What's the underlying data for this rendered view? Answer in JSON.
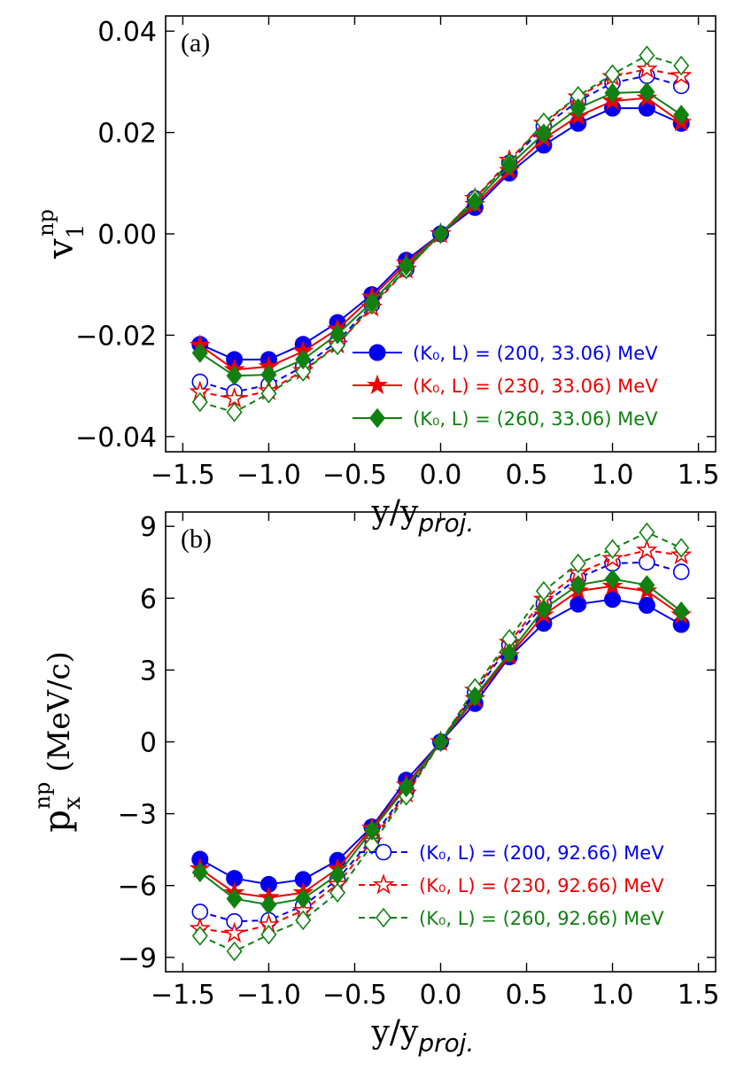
{
  "chart_data": [
    {
      "type": "line",
      "panel_label": "(a)",
      "ylabel_main": "v",
      "ylabel_sub": "1",
      "ylabel_sup": "np",
      "xlabel_main": "y/y",
      "xlabel_sub": "proj.",
      "xlim": [
        -1.6,
        1.6
      ],
      "ylim": [
        -0.043,
        0.043
      ],
      "xticks": [
        -1.5,
        -1.0,
        -0.5,
        0.0,
        0.5,
        1.0,
        1.5
      ],
      "xtick_labels": [
        "−1.5",
        "−1.0",
        "−0.5",
        "0.0",
        "0.5",
        "1.0",
        "1.5"
      ],
      "yticks": [
        -0.04,
        -0.02,
        0.0,
        0.02,
        0.04
      ],
      "ytick_labels": [
        "−0.04",
        "−0.02",
        "0.00",
        "0.02",
        "0.04"
      ],
      "x": [
        -1.4,
        -1.2,
        -1.0,
        -0.8,
        -0.6,
        -0.4,
        -0.2,
        0.0,
        0.2,
        0.4,
        0.6,
        0.8,
        1.0,
        1.2,
        1.4
      ],
      "legend_position": "lower-right",
      "series": [
        {
          "name": "(K₀, L) = (200, 33.06) MeV",
          "color": "#0000ee",
          "marker": "circle",
          "fill": "filled",
          "linestyle": "solid",
          "legend": true,
          "values": [
            -0.0218,
            -0.0248,
            -0.0248,
            -0.0218,
            -0.0175,
            -0.012,
            -0.0052,
            0.0,
            0.0052,
            0.012,
            0.0175,
            0.0218,
            0.0248,
            0.0248,
            0.0218
          ]
        },
        {
          "name": "(K₀, L) = (230, 33.06) MeV",
          "color": "#ee0000",
          "marker": "star",
          "fill": "filled",
          "linestyle": "solid",
          "legend": true,
          "values": [
            -0.022,
            -0.0268,
            -0.0262,
            -0.0232,
            -0.0188,
            -0.0125,
            -0.0058,
            0.0,
            0.0058,
            0.0125,
            0.0188,
            0.0232,
            0.0262,
            0.0268,
            0.022
          ]
        },
        {
          "name": "(K₀, L) = (260, 33.06) MeV",
          "color": "#108010",
          "marker": "diamond",
          "fill": "filled",
          "linestyle": "solid",
          "legend": true,
          "values": [
            -0.0235,
            -0.028,
            -0.0278,
            -0.0248,
            -0.0198,
            -0.0135,
            -0.0063,
            0.0,
            0.0063,
            0.0135,
            0.0198,
            0.0248,
            0.0278,
            0.028,
            0.0235
          ]
        },
        {
          "name": "(K₀, L) = (200, 92.66) MeV",
          "color": "#0000ee",
          "marker": "circle",
          "fill": "open",
          "linestyle": "dashed",
          "legend": false,
          "values": [
            -0.0292,
            -0.0312,
            -0.0298,
            -0.0262,
            -0.0212,
            -0.014,
            -0.007,
            0.0,
            0.007,
            0.014,
            0.0212,
            0.0262,
            0.0298,
            0.0312,
            0.0292
          ]
        },
        {
          "name": "(K₀, L) = (230, 92.66) MeV",
          "color": "#ee0000",
          "marker": "star",
          "fill": "open",
          "linestyle": "dashed",
          "legend": false,
          "values": [
            -0.0312,
            -0.0325,
            -0.031,
            -0.027,
            -0.0218,
            -0.0145,
            -0.007,
            0.0,
            0.007,
            0.0145,
            0.0218,
            0.027,
            0.031,
            0.0325,
            0.0312
          ]
        },
        {
          "name": "(K₀, L) = (260, 92.66) MeV",
          "color": "#108010",
          "marker": "diamond",
          "fill": "open",
          "linestyle": "dashed",
          "legend": false,
          "values": [
            -0.0332,
            -0.0352,
            -0.0315,
            -0.0272,
            -0.022,
            -0.014,
            -0.007,
            0.0,
            0.007,
            0.014,
            0.022,
            0.0272,
            0.0315,
            0.0352,
            0.0332
          ]
        }
      ]
    },
    {
      "type": "line",
      "panel_label": "(b)",
      "ylabel_main": "p",
      "ylabel_sub": "x",
      "ylabel_sup": "np",
      "ylabel_rest": " (MeV/c)",
      "xlabel_main": "y/y",
      "xlabel_sub": "proj.",
      "xlim": [
        -1.6,
        1.6
      ],
      "ylim": [
        -9.6,
        9.6
      ],
      "xticks": [
        -1.5,
        -1.0,
        -0.5,
        0.0,
        0.5,
        1.0,
        1.5
      ],
      "xtick_labels": [
        "−1.5",
        "−1.0",
        "−0.5",
        "0.0",
        "0.5",
        "1.0",
        "1.5"
      ],
      "yticks": [
        -9,
        -6,
        -3,
        0,
        3,
        6,
        9
      ],
      "ytick_labels": [
        "−9",
        "−6",
        "−3",
        "0",
        "3",
        "6",
        "9"
      ],
      "x": [
        -1.4,
        -1.2,
        -1.0,
        -0.8,
        -0.6,
        -0.4,
        -0.2,
        0.0,
        0.2,
        0.4,
        0.6,
        0.8,
        1.0,
        1.2,
        1.4
      ],
      "legend_position": "lower-right",
      "series": [
        {
          "name": "(K₀, L) = (200, 33.06) MeV",
          "color": "#0000ee",
          "marker": "circle",
          "fill": "filled",
          "linestyle": "solid",
          "legend": false,
          "values": [
            -4.9,
            -5.7,
            -5.95,
            -5.75,
            -4.95,
            -3.55,
            -1.6,
            0.0,
            1.6,
            3.55,
            4.95,
            5.75,
            5.95,
            5.7,
            4.9
          ]
        },
        {
          "name": "(K₀, L) = (230, 33.06) MeV",
          "color": "#ee0000",
          "marker": "star",
          "fill": "filled",
          "linestyle": "solid",
          "legend": false,
          "values": [
            -5.3,
            -6.3,
            -6.5,
            -6.3,
            -5.3,
            -3.6,
            -1.8,
            0.0,
            1.8,
            3.6,
            5.3,
            6.3,
            6.5,
            6.3,
            5.3
          ]
        },
        {
          "name": "(K₀, L) = (260, 33.06) MeV",
          "color": "#108010",
          "marker": "diamond",
          "fill": "filled",
          "linestyle": "solid",
          "legend": false,
          "values": [
            -5.45,
            -6.55,
            -6.8,
            -6.55,
            -5.55,
            -3.7,
            -1.9,
            0.0,
            1.9,
            3.7,
            5.55,
            6.55,
            6.8,
            6.55,
            5.45
          ]
        },
        {
          "name": "(K₀, L) = (200, 92.66) MeV",
          "color": "#0000ee",
          "marker": "circle",
          "fill": "open",
          "linestyle": "dashed",
          "legend": true,
          "values": [
            -7.1,
            -7.5,
            -7.45,
            -6.85,
            -5.75,
            -4.05,
            -2.05,
            0.0,
            2.05,
            4.05,
            5.75,
            6.85,
            7.45,
            7.5,
            7.1
          ]
        },
        {
          "name": "(K₀, L) = (230, 92.66) MeV",
          "color": "#ee0000",
          "marker": "star",
          "fill": "open",
          "linestyle": "dashed",
          "legend": true,
          "values": [
            -7.8,
            -8.0,
            -7.65,
            -7.05,
            -5.95,
            -4.15,
            -2.15,
            0.0,
            2.15,
            4.15,
            5.95,
            7.05,
            7.65,
            8.0,
            7.8
          ]
        },
        {
          "name": "(K₀, L) = (260, 92.66) MeV",
          "color": "#108010",
          "marker": "diamond",
          "fill": "open",
          "linestyle": "dashed",
          "legend": true,
          "values": [
            -8.1,
            -8.75,
            -8.05,
            -7.45,
            -6.3,
            -4.3,
            -2.25,
            0.0,
            2.25,
            4.3,
            6.3,
            7.45,
            8.05,
            8.75,
            8.1
          ]
        }
      ]
    }
  ]
}
